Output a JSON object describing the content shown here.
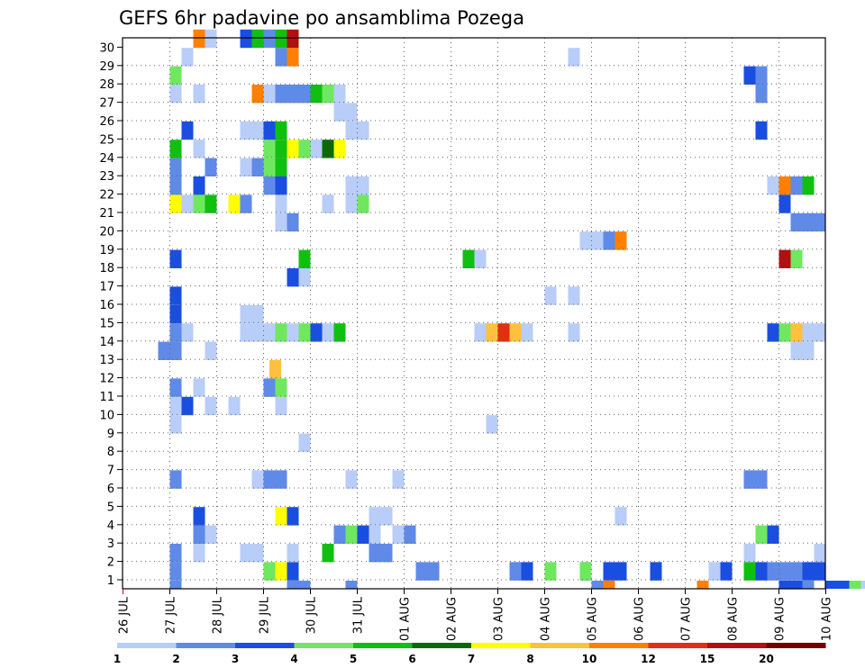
{
  "chart_data": {
    "type": "heatmap",
    "title": "GEFS 6hr padavine po ansamblima Pozega",
    "xlabel": "",
    "ylabel": "",
    "x_tick_labels": [
      "26 JUL",
      "27 JUL",
      "28 JUL",
      "29 JUL",
      "30 JUL",
      "31 JUL",
      "01 AUG",
      "02 AUG",
      "03 AUG",
      "04 AUG",
      "05 AUG",
      "06 AUG",
      "07 AUG",
      "08 AUG",
      "09 AUG",
      "10 AUG"
    ],
    "x_range_days": [
      0,
      15.125
    ],
    "y_tick_labels": [
      "1",
      "2",
      "3",
      "4",
      "5",
      "6",
      "7",
      "8",
      "9",
      "10",
      "11",
      "12",
      "13",
      "14",
      "15",
      "16",
      "17",
      "18",
      "19",
      "20",
      "21",
      "22",
      "23",
      "24",
      "25",
      "26",
      "27",
      "28",
      "29",
      "30"
    ],
    "y_range": [
      0,
      30
    ],
    "time_step_hours": 6,
    "grid": "dotted",
    "colorbar": {
      "position": "bottom",
      "tick_labels": [
        "1",
        "2",
        "3",
        "4",
        "5",
        "6",
        "7",
        "8",
        "10",
        "12",
        "15",
        "20"
      ],
      "colors": [
        "#b8cdf8",
        "#5f8ae8",
        "#1a4ee0",
        "#6fe860",
        "#10c010",
        "#0a6a0a",
        "#ffff00",
        "#ffc040",
        "#ff8000",
        "#e03010",
        "#b01010",
        "#700000"
      ]
    },
    "cells": [
      [
        1,
        27,
        2
      ],
      [
        1,
        29,
        4
      ],
      [
        1,
        29.25,
        7
      ],
      [
        1,
        29.5,
        3
      ],
      [
        1,
        32.25,
        2
      ],
      [
        1,
        32.5,
        2
      ],
      [
        1,
        34.25,
        1
      ],
      [
        1,
        34.25,
        2
      ],
      [
        1,
        34.5,
        3
      ],
      [
        1,
        35,
        4
      ],
      [
        1,
        35.75,
        3
      ],
      [
        1,
        35.75,
        4
      ],
      [
        1,
        36.25,
        3
      ],
      [
        1,
        36.5,
        3
      ],
      [
        1,
        37.25,
        4
      ],
      [
        1,
        37.25,
        3
      ],
      [
        1,
        38.5,
        1
      ],
      [
        1,
        38.75,
        3
      ],
      [
        1,
        39.25,
        5
      ],
      [
        1,
        39.5,
        3
      ],
      [
        1,
        39.75,
        2
      ],
      [
        1,
        40,
        2
      ],
      [
        1,
        40.25,
        2
      ],
      [
        1,
        40.5,
        3
      ],
      [
        1,
        40.75,
        3
      ],
      [
        1,
        41.25,
        5
      ],
      [
        1,
        41.5,
        1
      ],
      [
        2,
        27,
        2
      ],
      [
        2,
        27.5,
        1
      ],
      [
        2,
        28.5,
        1
      ],
      [
        2,
        28.75,
        1
      ],
      [
        2,
        29.5,
        1
      ],
      [
        2,
        30.25,
        5
      ],
      [
        2,
        31.25,
        2
      ],
      [
        2,
        31.5,
        2
      ],
      [
        2,
        39.25,
        1
      ],
      [
        2,
        40.75,
        1
      ],
      [
        2,
        41.5,
        1
      ],
      [
        2,
        42.25,
        1
      ],
      [
        2,
        44.5,
        1
      ],
      [
        2,
        48.5,
        1
      ],
      [
        2,
        43.75,
        1
      ],
      [
        2,
        45,
        1
      ],
      [
        3,
        27.5,
        2
      ],
      [
        3,
        27.75,
        1
      ],
      [
        3,
        30.5,
        2
      ],
      [
        3,
        30.75,
        4
      ],
      [
        3,
        31,
        3
      ],
      [
        3,
        31.25,
        1
      ],
      [
        3,
        31.75,
        1
      ],
      [
        3,
        32,
        2
      ],
      [
        3,
        39.5,
        4
      ],
      [
        3,
        39.75,
        3
      ],
      [
        3,
        42.25,
        2
      ],
      [
        3,
        44.75,
        5
      ],
      [
        4,
        27.5,
        3
      ],
      [
        4,
        29.25,
        7
      ],
      [
        4,
        29.5,
        3
      ],
      [
        4,
        31.25,
        1
      ],
      [
        4,
        31.5,
        1
      ],
      [
        4,
        36.5,
        1
      ],
      [
        4,
        45.25,
        1
      ],
      [
        4,
        45.5,
        2
      ],
      [
        4,
        45.75,
        8
      ],
      [
        4,
        46,
        2
      ],
      [
        4,
        46.25,
        12
      ],
      [
        4,
        46.5,
        6
      ],
      [
        6,
        27,
        2
      ],
      [
        6,
        28.75,
        1
      ],
      [
        6,
        29,
        2
      ],
      [
        6,
        29.25,
        2
      ],
      [
        6,
        30.75,
        1
      ],
      [
        6,
        31.75,
        1
      ],
      [
        6,
        39.25,
        2
      ],
      [
        6,
        39.5,
        2
      ],
      [
        6,
        41.5,
        1
      ],
      [
        6,
        41.75,
        4
      ],
      [
        7,
        41.5,
        3
      ],
      [
        7,
        41.75,
        3
      ],
      [
        7,
        42.75,
        5
      ],
      [
        7,
        43,
        5
      ],
      [
        7,
        43.25,
        5
      ],
      [
        7,
        43.5,
        1
      ],
      [
        7,
        44.5,
        3
      ],
      [
        8,
        29.75,
        1
      ],
      [
        9,
        27,
        1
      ],
      [
        9,
        33.75,
        1
      ],
      [
        9,
        41,
        1
      ],
      [
        9,
        41.25,
        1
      ],
      [
        9,
        41.5,
        3
      ],
      [
        9,
        41.75,
        1
      ],
      [
        9,
        42,
        3
      ],
      [
        9,
        42.25,
        4
      ],
      [
        9,
        42.75,
        3
      ],
      [
        9,
        43,
        6
      ],
      [
        9,
        43.25,
        2
      ],
      [
        10,
        27,
        1
      ],
      [
        10,
        27.25,
        3
      ],
      [
        10,
        27.75,
        1
      ],
      [
        10,
        28.25,
        1
      ],
      [
        10,
        29.25,
        1
      ],
      [
        10,
        48.75,
        3
      ],
      [
        11,
        27,
        2
      ],
      [
        11,
        27.5,
        1
      ],
      [
        11,
        29,
        2
      ],
      [
        11,
        29.25,
        4
      ],
      [
        12,
        29.125,
        8
      ],
      [
        13,
        26.75,
        2
      ],
      [
        13,
        27,
        2
      ],
      [
        13,
        27.75,
        1
      ],
      [
        13,
        41.5,
        1
      ],
      [
        13,
        40.25,
        1
      ],
      [
        13,
        40.5,
        1
      ],
      [
        14,
        27,
        2
      ],
      [
        14,
        27.25,
        1
      ],
      [
        14,
        28.5,
        1
      ],
      [
        14,
        28.75,
        1
      ],
      [
        14,
        29,
        1
      ],
      [
        14,
        29.25,
        4
      ],
      [
        14,
        29.5,
        1
      ],
      [
        14,
        29.75,
        4
      ],
      [
        14,
        30,
        3
      ],
      [
        14,
        30.25,
        1
      ],
      [
        14,
        33.5,
        1
      ],
      [
        14,
        33.75,
        8
      ],
      [
        14,
        34,
        12
      ],
      [
        14,
        34.25,
        8
      ],
      [
        14,
        34.5,
        1
      ],
      [
        14,
        35.5,
        1
      ],
      [
        14,
        39.75,
        3
      ],
      [
        14,
        40,
        4
      ],
      [
        14,
        40.25,
        8
      ],
      [
        14,
        40.5,
        1
      ],
      [
        14,
        40.75,
        1
      ],
      [
        14,
        41.25,
        3
      ],
      [
        14,
        41.5,
        1
      ],
      [
        14,
        41.75,
        4
      ],
      [
        14,
        42,
        6
      ],
      [
        14,
        42.25,
        10
      ],
      [
        14,
        42.5,
        2
      ],
      [
        14,
        42.75,
        1
      ],
      [
        14,
        43.5,
        2
      ],
      [
        14,
        43.75,
        2
      ],
      [
        14,
        44,
        4
      ],
      [
        14,
        44.25,
        1
      ],
      [
        14,
        41.75,
        1
      ],
      [
        14,
        30.5,
        5
      ],
      [
        15,
        27,
        3
      ],
      [
        15,
        28.5,
        1
      ],
      [
        15,
        28.75,
        1
      ],
      [
        15,
        42,
        2
      ],
      [
        15,
        42.25,
        1
      ],
      [
        15,
        42.5,
        3
      ],
      [
        15,
        42.75,
        8
      ],
      [
        15,
        43,
        1
      ],
      [
        16,
        27,
        3
      ],
      [
        16,
        41.25,
        4
      ],
      [
        16,
        41.5,
        1
      ],
      [
        16,
        41.75,
        2
      ],
      [
        16,
        42,
        1
      ],
      [
        16,
        42.5,
        8
      ],
      [
        16,
        42.75,
        1
      ],
      [
        16,
        43.75,
        1
      ],
      [
        16,
        35,
        1
      ],
      [
        16,
        35.5,
        1
      ],
      [
        17,
        29.5,
        3
      ],
      [
        17,
        29.75,
        1
      ],
      [
        17,
        44,
        1
      ],
      [
        18,
        27,
        3
      ],
      [
        18,
        29.75,
        5
      ],
      [
        18,
        33.25,
        5
      ],
      [
        18,
        33.5,
        1
      ],
      [
        18,
        40,
        15
      ],
      [
        18,
        40.25,
        4
      ],
      [
        18,
        43.75,
        1
      ],
      [
        19,
        35.75,
        1
      ],
      [
        19,
        36,
        1
      ],
      [
        19,
        36.25,
        2
      ],
      [
        19,
        36.5,
        10
      ],
      [
        20,
        29.25,
        1
      ],
      [
        20,
        29.5,
        2
      ],
      [
        20,
        40.25,
        2
      ],
      [
        20,
        40.5,
        2
      ],
      [
        20,
        40.75,
        2
      ],
      [
        20,
        41.5,
        2
      ],
      [
        21,
        27,
        7
      ],
      [
        21,
        27.25,
        1
      ],
      [
        21,
        27.5,
        4
      ],
      [
        21,
        27.75,
        5
      ],
      [
        21,
        28.25,
        7
      ],
      [
        21,
        28.5,
        2
      ],
      [
        21,
        29.25,
        1
      ],
      [
        21,
        30.25,
        1
      ],
      [
        21,
        30.75,
        1
      ],
      [
        21,
        31,
        4
      ],
      [
        21,
        44,
        2
      ],
      [
        21,
        44.25,
        3
      ],
      [
        21,
        44.5,
        1
      ],
      [
        21,
        44.75,
        3
      ],
      [
        21,
        45,
        2
      ],
      [
        21,
        45.25,
        1
      ],
      [
        21,
        45.5,
        1
      ],
      [
        21,
        45.75,
        1
      ],
      [
        21,
        46,
        1
      ],
      [
        21,
        46.25,
        10
      ],
      [
        21,
        46.5,
        2
      ],
      [
        21,
        40,
        3
      ],
      [
        22,
        27,
        2
      ],
      [
        22,
        27.5,
        3
      ],
      [
        22,
        29,
        2
      ],
      [
        22,
        29.25,
        3
      ],
      [
        22,
        30.75,
        1
      ],
      [
        22,
        31,
        1
      ],
      [
        22,
        39.75,
        1
      ],
      [
        22,
        40,
        10
      ],
      [
        22,
        40.25,
        2
      ],
      [
        22,
        40.5,
        5
      ],
      [
        22,
        41,
        1
      ],
      [
        22,
        41.5,
        8
      ],
      [
        22,
        41.75,
        2
      ],
      [
        22,
        42.5,
        3
      ],
      [
        22,
        43.25,
        1
      ],
      [
        22,
        43.5,
        5
      ],
      [
        22,
        43.75,
        8
      ],
      [
        22,
        44,
        2
      ],
      [
        22,
        44.25,
        3
      ],
      [
        23,
        27,
        2
      ],
      [
        23,
        27.75,
        2
      ],
      [
        23,
        28.5,
        1
      ],
      [
        23,
        28.75,
        2
      ],
      [
        23,
        29,
        4
      ],
      [
        23,
        29.25,
        5
      ],
      [
        23,
        42,
        3
      ],
      [
        23,
        42.25,
        1
      ],
      [
        24,
        27,
        5
      ],
      [
        24,
        27.5,
        1
      ],
      [
        24,
        29,
        4
      ],
      [
        24,
        29.25,
        5
      ],
      [
        24,
        29.5,
        7
      ],
      [
        24,
        29.75,
        4
      ],
      [
        24,
        30,
        1
      ],
      [
        24,
        30.25,
        6
      ],
      [
        24,
        30.5,
        7
      ],
      [
        25,
        27.25,
        3
      ],
      [
        25,
        28.5,
        1
      ],
      [
        25,
        28.75,
        1
      ],
      [
        25,
        29,
        3
      ],
      [
        25,
        29.25,
        5
      ],
      [
        25,
        30.75,
        1
      ],
      [
        25,
        31,
        1
      ],
      [
        25,
        39.5,
        3
      ],
      [
        26,
        30.5,
        1
      ],
      [
        26,
        30.75,
        1
      ],
      [
        27,
        27,
        1
      ],
      [
        27,
        27.5,
        1
      ],
      [
        27,
        28.75,
        10
      ],
      [
        27,
        29,
        1
      ],
      [
        27,
        29.25,
        2
      ],
      [
        27,
        29.5,
        2
      ],
      [
        27,
        29.75,
        2
      ],
      [
        27,
        30,
        5
      ],
      [
        27,
        30.25,
        4
      ],
      [
        27,
        30.5,
        1
      ],
      [
        27,
        39.5,
        2
      ],
      [
        27,
        41.75,
        3
      ],
      [
        27,
        42.25,
        2
      ],
      [
        27,
        42.5,
        5
      ],
      [
        27,
        43.25,
        5
      ],
      [
        27,
        43.5,
        20
      ],
      [
        28,
        27,
        4
      ],
      [
        28,
        39.25,
        3
      ],
      [
        28,
        39.5,
        2
      ],
      [
        28,
        41,
        1
      ],
      [
        28,
        43,
        5
      ],
      [
        29,
        27.25,
        1
      ],
      [
        29,
        29.25,
        2
      ],
      [
        29,
        29.5,
        10
      ],
      [
        29,
        35.5,
        1
      ],
      [
        30,
        27.5,
        10
      ],
      [
        30,
        27.75,
        1
      ],
      [
        30,
        28.5,
        3
      ],
      [
        30,
        28.75,
        5
      ],
      [
        30,
        29,
        2
      ],
      [
        30,
        29.25,
        5
      ],
      [
        30,
        29.5,
        15
      ]
    ],
    "cells_x_units": "days from 00Z 26 JUL (offset by 26 in list: value = day-of-month index where 26 = 26 JUL)"
  }
}
